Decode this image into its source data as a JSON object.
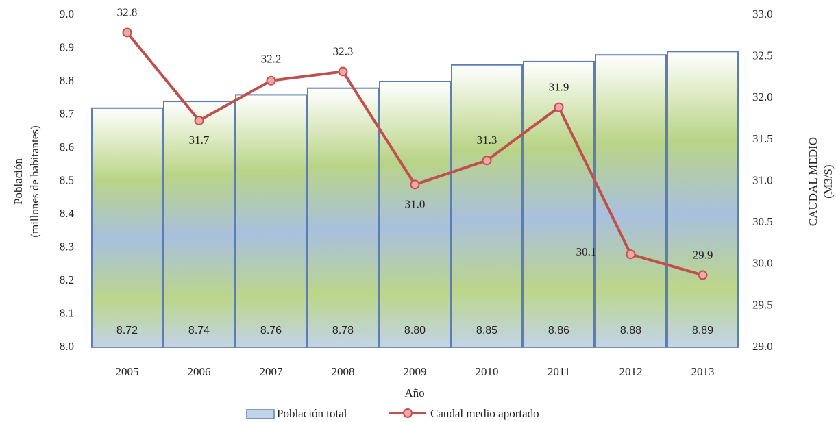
{
  "chart_data": {
    "type": "bar-line",
    "x_label": "Año",
    "y_label": [
      "Población",
      "(millones de habitantes)"
    ],
    "y2_label": [
      "CAUDAL MEDIO",
      "(M3/S)"
    ],
    "categories": [
      "2005",
      "2006",
      "2007",
      "2008",
      "2009",
      "2010",
      "2011",
      "2012",
      "2013"
    ],
    "series": [
      {
        "name": "Población total",
        "type": "bar",
        "color": "#5b7fb5",
        "values": [
          8.72,
          8.74,
          8.76,
          8.78,
          8.8,
          8.85,
          8.86,
          8.88,
          8.89
        ],
        "value_labels": [
          "8.72",
          "8.74",
          "8.76",
          "8.78",
          "8.80",
          "8.85",
          "8.86",
          "8.88",
          "8.89"
        ]
      },
      {
        "name": "Caudal medio aportado",
        "type": "line",
        "axis": "y2",
        "color": "#c0504d",
        "values": [
          32.79,
          31.73,
          32.21,
          32.32,
          30.96,
          31.25,
          31.89,
          30.12,
          29.87
        ],
        "value_labels": [
          "32.8",
          "31.7",
          "32.2",
          "32.3",
          "31.0",
          "31.3",
          "31.9",
          "30.1",
          "29.9"
        ]
      }
    ],
    "ylim": [
      8.0,
      9.0
    ],
    "yticks": [
      {
        "value": 8.0,
        "label": "8.0"
      },
      8.1,
      8.2,
      8.3,
      8.4,
      8.5,
      8.6,
      8.7,
      8.8,
      8.9,
      {
        "value": 9.0,
        "label": "9.0"
      }
    ],
    "y2lim": [
      29.0,
      33.0
    ],
    "y2ticks": [
      {
        "value": 29.0,
        "label": "29.0"
      },
      29.5,
      {
        "value": 30.0,
        "label": "30.0"
      },
      30.5,
      {
        "value": 31.0,
        "label": "31.0"
      },
      31.5,
      {
        "value": 32.0,
        "label": "32.0"
      },
      32.5,
      {
        "value": 33.0,
        "label": "33.0"
      }
    ],
    "legend": "bottom"
  }
}
